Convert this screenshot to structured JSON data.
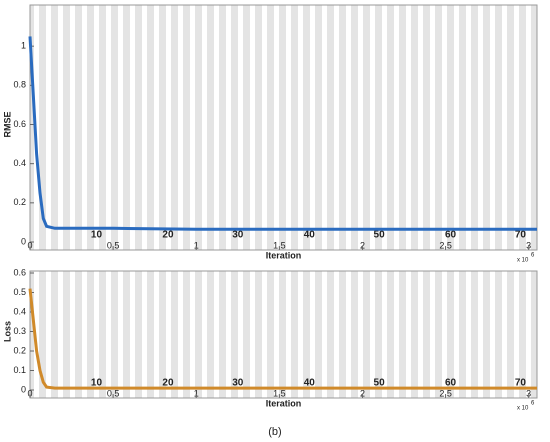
{
  "chart_data": [
    {
      "type": "line",
      "ylabel": "RMSE",
      "xlabel": "Iteration",
      "x_multiplier": "x 10",
      "x_exponent": "6",
      "x": [
        0,
        0.02,
        0.04,
        0.06,
        0.08,
        0.1,
        0.15,
        0.5,
        1,
        1.5,
        2,
        2.5,
        3.05
      ],
      "values": [
        1.05,
        0.75,
        0.45,
        0.25,
        0.12,
        0.08,
        0.07,
        0.07,
        0.065,
        0.065,
        0.065,
        0.065,
        0.065
      ],
      "color": "#2a6bbf",
      "xlim": [
        0,
        3.05
      ],
      "ylim": [
        0,
        1.2
      ],
      "xticks": [
        0,
        0.5,
        1,
        1.5,
        2,
        2.5,
        3
      ],
      "yticks": [
        0,
        0.2,
        0.4,
        0.6,
        0.8,
        1
      ],
      "epochs": [
        10,
        20,
        30,
        40,
        50,
        60,
        70
      ],
      "epoch_x": [
        0.4,
        0.83,
        1.25,
        1.68,
        2.1,
        2.53,
        2.95
      ]
    },
    {
      "type": "line",
      "ylabel": "Loss",
      "xlabel": "Iteration",
      "x_multiplier": "x 10",
      "x_exponent": "6",
      "x": [
        0,
        0.02,
        0.04,
        0.06,
        0.08,
        0.1,
        0.15,
        0.5,
        1,
        1.5,
        2,
        2.5,
        3.05
      ],
      "values": [
        0.52,
        0.36,
        0.2,
        0.1,
        0.04,
        0.015,
        0.01,
        0.01,
        0.01,
        0.01,
        0.01,
        0.01,
        0.01
      ],
      "color": "#d08a2a",
      "xlim": [
        0,
        3.05
      ],
      "ylim": [
        0,
        0.6
      ],
      "xticks": [
        0,
        0.5,
        1,
        1.5,
        2,
        2.5,
        3
      ],
      "yticks": [
        0,
        0.1,
        0.2,
        0.3,
        0.4,
        0.5,
        0.6
      ],
      "epochs": [
        10,
        20,
        30,
        40,
        50,
        60,
        70
      ],
      "epoch_x": [
        0.4,
        0.83,
        1.25,
        1.68,
        2.1,
        2.53,
        2.95
      ]
    }
  ],
  "caption": "(b)"
}
